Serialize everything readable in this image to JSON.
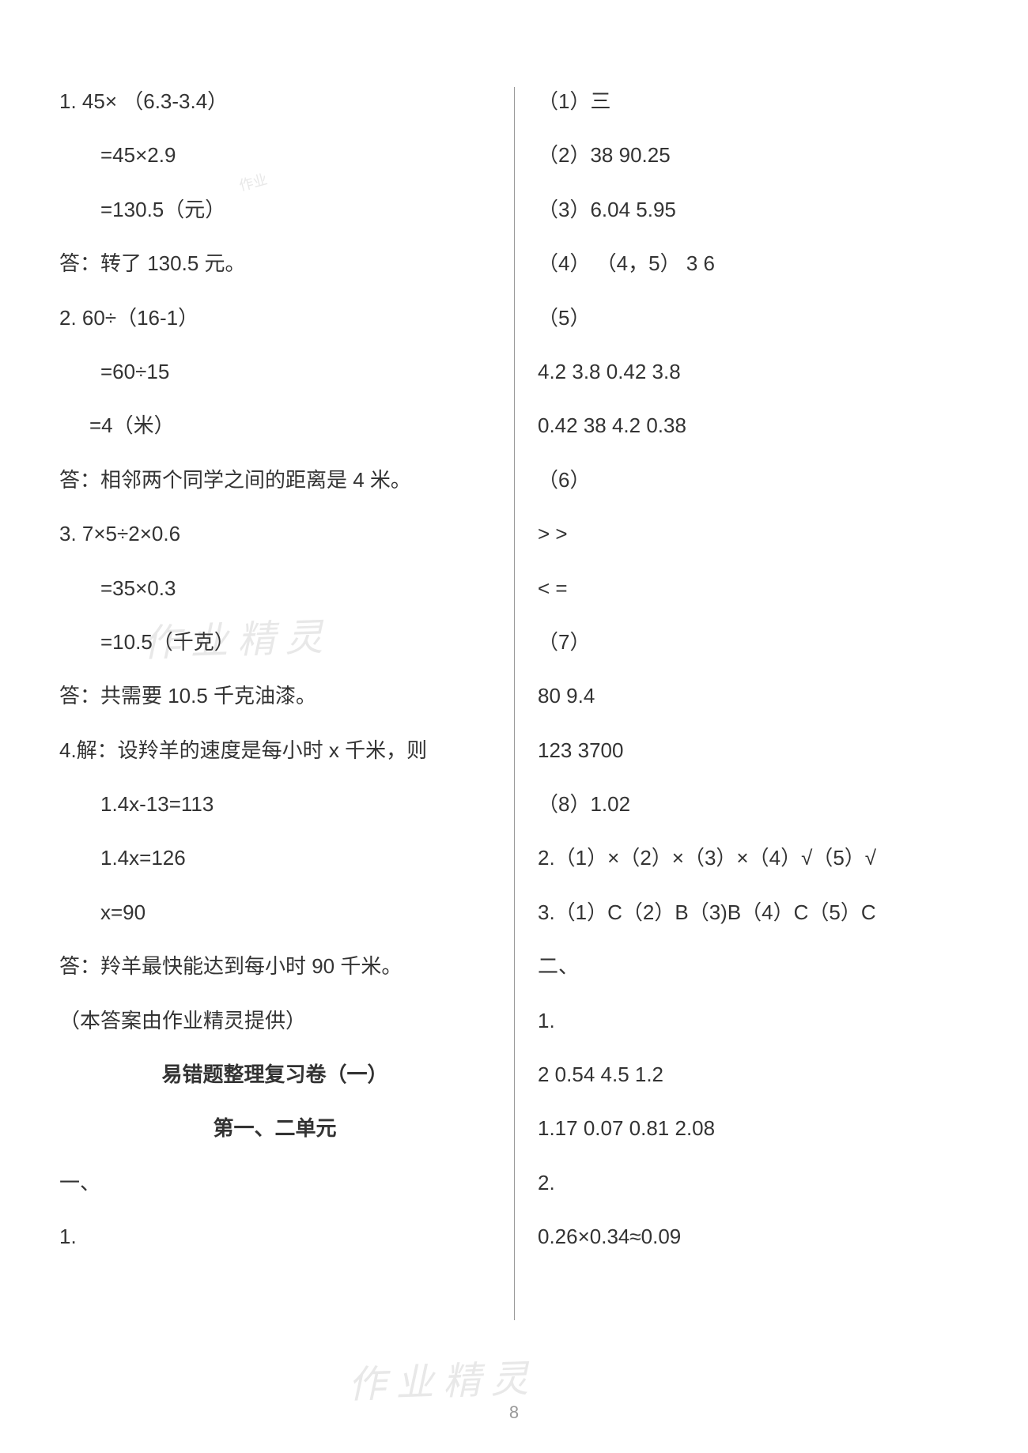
{
  "left": {
    "l01": "1.   45× （6.3-3.4）",
    "l02": "=45×2.9",
    "l03": "=130.5（元）",
    "l04": "答：转了 130.5 元。",
    "l05": "2.   60÷（16-1）",
    "l06": "=60÷15",
    "l07": "=4（米）",
    "l08": "答：相邻两个同学之间的距离是 4 米。",
    "l09": "3.   7×5÷2×0.6",
    "l10": "=35×0.3",
    "l11": "=10.5（千克）",
    "l12": "答：共需要 10.5 千克油漆。",
    "l13": "4.解：设羚羊的速度是每小时 x 千米，则",
    "l14": "1.4x-13=113",
    "l15": "1.4x=126",
    "l16": "x=90",
    "l17": "答：羚羊最快能达到每小时 90 千米。",
    "l18": "（本答案由作业精灵提供）",
    "l19": "易错题整理复习卷（一）",
    "l20": "第一、二单元",
    "l21": "一、",
    "l22": "1."
  },
  "right": {
    "r01": "（1）三",
    "r02": "（2）38    90.25",
    "r03": "（3）6.04     5.95",
    "r04": "（4） （4，5）   3   6",
    "r05": "（5）",
    "r06": "4.2     3.8         0.42      3.8",
    "r07": "0.42     38        4.2      0.38",
    "r08": "（6）",
    "r09": ">     >",
    "r10": "<     =",
    "r11": "（7）",
    "r12": "80     9.4",
    "r13": "123       3700",
    "r14": "（8）1.02",
    "r15": "2.（1）×（2）×（3）×（4）√（5）√",
    "r16": "3.（1）C（2）B（3)B（4）C（5）C",
    "r17": "二、",
    "r18": "1.",
    "r19": "2      0.54     4.5     1.2",
    "r20": "1.17     0.07     0.81     2.08",
    "r21": "2.",
    "r22": "0.26×0.34≈0.09"
  },
  "page_number": "8",
  "watermark_text": "作业精灵",
  "stamp_text": "作业"
}
